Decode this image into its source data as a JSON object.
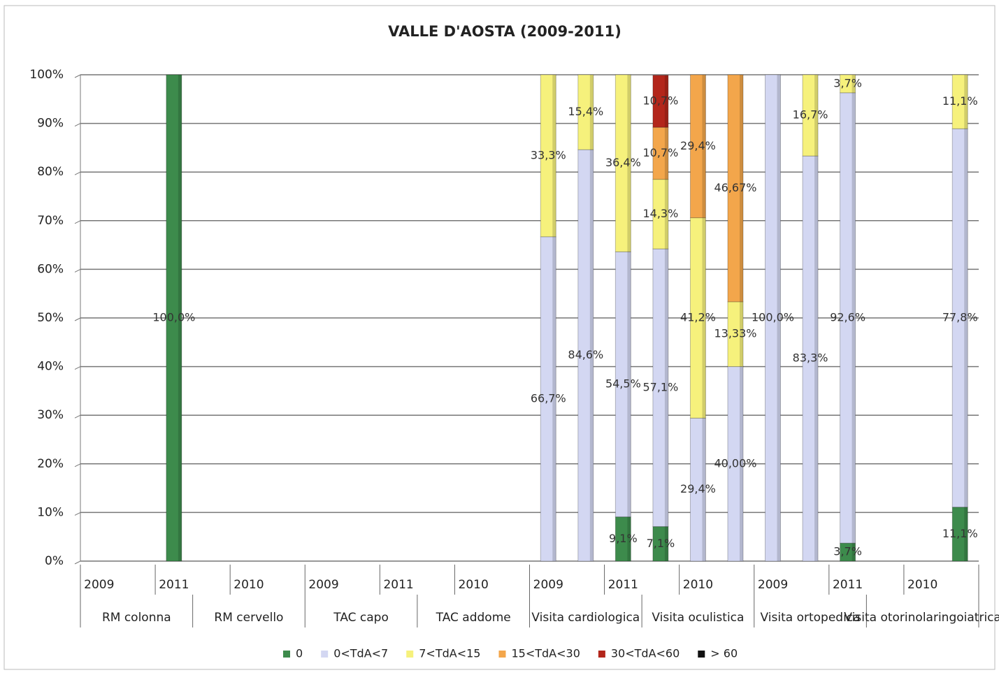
{
  "chart_data": {
    "type": "stacked_bar",
    "title": "VALLE D'AOSTA  (2009-2011)",
    "categories": [
      "2009",
      null,
      "2011",
      null,
      "2010",
      null,
      "2009",
      null,
      "2011",
      null,
      "2010",
      null,
      "2009",
      null,
      "2011",
      null,
      "2010",
      null,
      "2009",
      null,
      "2011",
      null,
      "2010",
      null
    ],
    "groups": [
      "RM colonna",
      "RM cervello",
      "TAC capo",
      "TAC addome",
      "Visita cardiologica",
      "Visita oculistica",
      "Visita ortopedica",
      "Visita otorinolaringoiatrica"
    ],
    "series": [
      {
        "name": "0",
        "color": "#3d8b4c",
        "values": [
          null,
          null,
          100,
          null,
          null,
          null,
          null,
          null,
          null,
          null,
          null,
          null,
          null,
          null,
          9.1,
          7.1,
          null,
          null,
          null,
          null,
          3.7,
          null,
          null,
          11.1
        ],
        "value_labels": [
          null,
          null,
          "100,0%",
          null,
          null,
          null,
          null,
          null,
          null,
          null,
          null,
          null,
          null,
          null,
          "9,1%",
          "7,1%",
          null,
          null,
          null,
          null,
          "3,7%",
          null,
          null,
          "11,1%"
        ]
      },
      {
        "name": "0<TdA<7",
        "color": "#d3d7f2",
        "values": [
          null,
          null,
          null,
          null,
          null,
          null,
          null,
          null,
          null,
          null,
          null,
          null,
          66.7,
          84.6,
          54.5,
          57.1,
          29.4,
          40,
          100,
          83.3,
          92.6,
          null,
          null,
          77.8
        ],
        "value_labels": [
          null,
          null,
          null,
          null,
          null,
          null,
          null,
          null,
          null,
          null,
          null,
          null,
          "66,7%",
          "84,6%",
          "54,5%",
          "57,1%",
          "29,4%",
          "40,00%",
          "100,0%",
          "83,3%",
          "92,6%",
          null,
          null,
          "77,8%"
        ]
      },
      {
        "name": "7<TdA<15",
        "color": "#f6f17c",
        "values": [
          null,
          null,
          null,
          null,
          null,
          null,
          null,
          null,
          null,
          null,
          null,
          null,
          33.3,
          15.4,
          36.4,
          14.3,
          41.2,
          13.33,
          null,
          16.7,
          3.7,
          null,
          null,
          11.1
        ],
        "value_labels": [
          null,
          null,
          null,
          null,
          null,
          null,
          null,
          null,
          null,
          null,
          null,
          null,
          "33,3%",
          "15,4%",
          "36,4%",
          "14,3%",
          "41,2%",
          "13,33%",
          null,
          "16,7%",
          "3,7%",
          null,
          null,
          "11,1%"
        ]
      },
      {
        "name": "15<TdA<30",
        "color": "#f3a64b",
        "values": [
          null,
          null,
          null,
          null,
          null,
          null,
          null,
          null,
          null,
          null,
          null,
          null,
          null,
          null,
          null,
          10.7,
          29.4,
          46.67,
          null,
          null,
          null,
          null,
          null,
          null
        ],
        "value_labels": [
          null,
          null,
          null,
          null,
          null,
          null,
          null,
          null,
          null,
          null,
          null,
          null,
          null,
          null,
          null,
          "10,7%",
          "29,4%",
          "46,67%",
          null,
          null,
          null,
          null,
          null,
          null
        ]
      },
      {
        "name": "30<TdA<60",
        "color": "#b3261b",
        "values": [
          null,
          null,
          null,
          null,
          null,
          null,
          null,
          null,
          null,
          null,
          null,
          null,
          null,
          null,
          null,
          10.7,
          null,
          null,
          null,
          null,
          null,
          null,
          null,
          null
        ],
        "value_labels": [
          null,
          null,
          null,
          null,
          null,
          null,
          null,
          null,
          null,
          null,
          null,
          null,
          null,
          null,
          null,
          "10,7%",
          null,
          null,
          null,
          null,
          null,
          null,
          null,
          null
        ]
      },
      {
        "name": "> 60",
        "color": "#111111",
        "values": [
          null,
          null,
          null,
          null,
          null,
          null,
          null,
          null,
          null,
          null,
          null,
          null,
          null,
          null,
          null,
          null,
          null,
          null,
          null,
          null,
          null,
          null,
          null,
          null
        ],
        "value_labels": [
          null,
          null,
          null,
          null,
          null,
          null,
          null,
          null,
          null,
          null,
          null,
          null,
          null,
          null,
          null,
          null,
          null,
          null,
          null,
          null,
          null,
          null,
          null,
          null
        ]
      }
    ],
    "ylim": [
      0,
      100
    ],
    "yticks": [
      {
        "value": 0,
        "label": "0%"
      },
      {
        "value": 10,
        "label": "10%"
      },
      {
        "value": 20,
        "label": "20%"
      },
      {
        "value": 30,
        "label": "30%"
      },
      {
        "value": 40,
        "label": "40%"
      },
      {
        "value": 50,
        "label": "50%"
      },
      {
        "value": 60,
        "label": "60%"
      },
      {
        "value": 70,
        "label": "70%"
      },
      {
        "value": 80,
        "label": "80%"
      },
      {
        "value": 90,
        "label": "90%"
      },
      {
        "value": 100,
        "label": "100%"
      }
    ],
    "grid": true,
    "legend": "bottom"
  }
}
